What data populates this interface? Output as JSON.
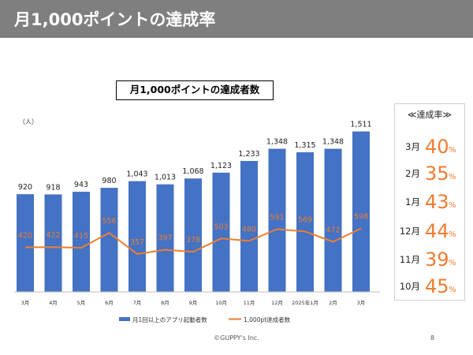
{
  "header": {
    "title": "月1,000ポイントの達成率"
  },
  "chart_data": {
    "type": "bar",
    "title": "月1,000ポイントの達成者数",
    "y_unit_label": "（人）",
    "categories": [
      "3月",
      "4月",
      "5月",
      "6月",
      "7月",
      "8月",
      "9月",
      "10月",
      "11月",
      "12月",
      "2025年1月",
      "2月",
      "3月"
    ],
    "series": [
      {
        "name": "月1回以上のアプリ起動者数",
        "kind": "bar",
        "color": "#4472c4",
        "values": [
          920,
          918,
          943,
          980,
          1043,
          1013,
          1068,
          1123,
          1233,
          1348,
          1315,
          1348,
          1511
        ],
        "labels": [
          "920",
          "918",
          "943",
          "980",
          "1,043",
          "1,013",
          "1,068",
          "1,123",
          "1,233",
          "1,348",
          "1,315",
          "1,348",
          "1,511"
        ]
      },
      {
        "name": "1,000pt達成者数",
        "kind": "line",
        "color": "#ed7d31",
        "values": [
          420,
          422,
          415,
          556,
          357,
          397,
          378,
          503,
          480,
          591,
          569,
          472,
          598
        ],
        "labels": [
          "420",
          "422",
          "415",
          "556",
          "357",
          "397",
          "378",
          "503",
          "480",
          "591",
          "569",
          "472",
          "598"
        ]
      }
    ],
    "ylim": [
      0,
      1600
    ],
    "grid": false,
    "legend": "bottom"
  },
  "rate_panel": {
    "title": "≪達成率≫",
    "unit": "%",
    "rows": [
      {
        "month": "3月",
        "value": "40"
      },
      {
        "month": "2月",
        "value": "35"
      },
      {
        "month": "1月",
        "value": "43"
      },
      {
        "month": "12月",
        "value": "44"
      },
      {
        "month": "11月",
        "value": "39"
      },
      {
        "month": "10月",
        "value": "45"
      }
    ]
  },
  "footer": {
    "copyright": "©GUPPY's Inc.",
    "page": "8"
  }
}
